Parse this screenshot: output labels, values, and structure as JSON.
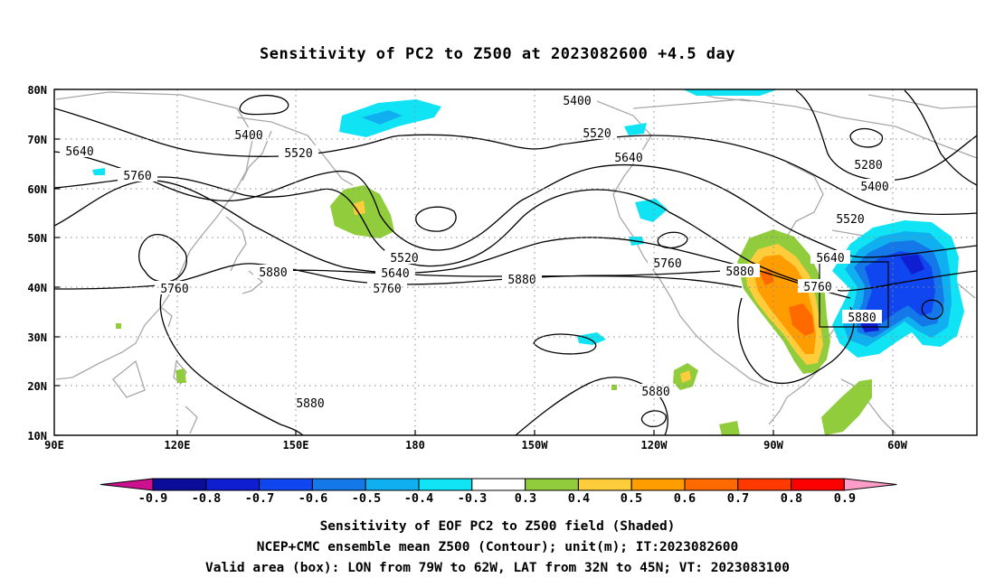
{
  "title": "Sensitivity of PC2 to Z500 at 2023082600 +4.5 day",
  "axes": {
    "lat_labels": [
      "80N",
      "70N",
      "60N",
      "50N",
      "40N",
      "30N",
      "20N",
      "10N"
    ],
    "lon_labels": [
      "90E",
      "120E",
      "150E",
      "180",
      "150W",
      "120W",
      "90W",
      "60W"
    ]
  },
  "contour_labels": [
    "5400",
    "5400",
    "5520",
    "5520",
    "5640",
    "5640",
    "5760",
    "5760",
    "5760",
    "5880",
    "5880",
    "5880",
    "5880",
    "5280",
    "5400",
    "5520",
    "5640",
    "5760",
    "5880",
    "5520",
    "5640",
    "5760",
    "5880"
  ],
  "colorbar": {
    "labels": [
      "-0.9",
      "-0.8",
      "-0.7",
      "-0.6",
      "-0.5",
      "-0.4",
      "-0.3",
      "0.3",
      "0.4",
      "0.5",
      "0.6",
      "0.7",
      "0.8",
      "0.9"
    ],
    "colors": [
      "#cc1090",
      "#0c0c9a",
      "#0e1ed0",
      "#1046f0",
      "#1478e8",
      "#10b0f0",
      "#10e4f4",
      "#ffffff",
      "#90cc3c",
      "#ffcc3c",
      "#ff9c00",
      "#ff6a00",
      "#ff3a00",
      "#ff0000",
      "#ff9cc8"
    ]
  },
  "captions": [
    "Sensitivity of EOF PC2 to Z500 field (Shaded)",
    "NCEP+CMC ensemble mean Z500 (Contour); unit(m); IT:2023082600",
    "Valid area (box): LON from 79W to 62W, LAT from 32N to 45N; VT: 2023083100"
  ],
  "valid_box": {
    "lon_west": "79W",
    "lon_east": "62W",
    "lat_south": "32N",
    "lat_north": "45N"
  }
}
